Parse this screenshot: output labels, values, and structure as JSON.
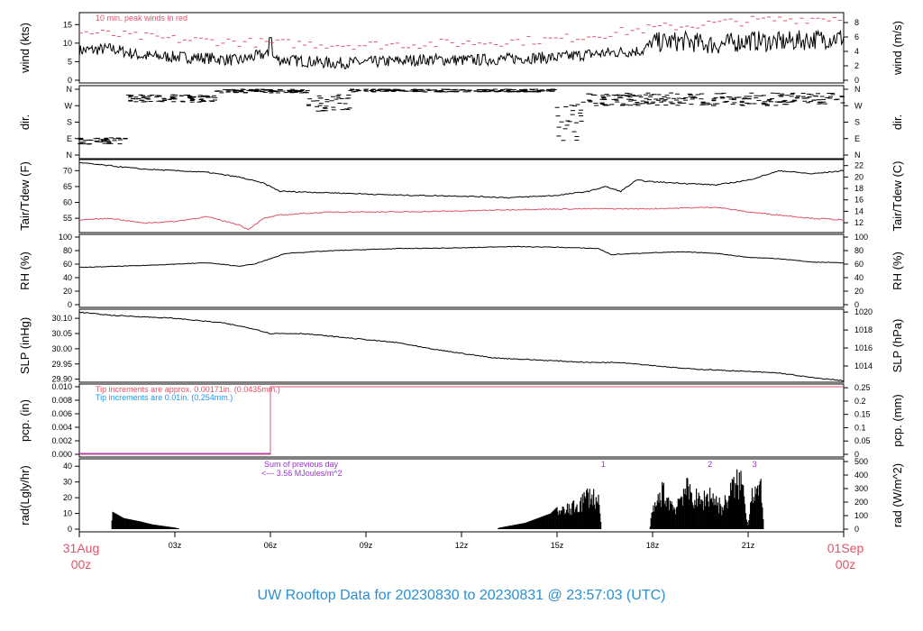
{
  "colors": {
    "accent_red": "#df536b",
    "accent_blue": "#2297e6",
    "accent_purple": "#9a32cd",
    "title_blue": "#2a8fd0"
  },
  "footer": {
    "title": "UW Rooftop Data for 20230830  to  20230831 @ 23:57:03  (UTC)"
  },
  "chart_data": {
    "type": "line",
    "x_axis": {
      "range_hours": [
        0,
        24
      ],
      "tick_hours": [
        3,
        6,
        9,
        12,
        15,
        18,
        21
      ],
      "tick_labels": [
        "03z",
        "06z",
        "09z",
        "12z",
        "15z",
        "18z",
        "21z"
      ],
      "start_label": [
        "31Aug",
        "00z"
      ],
      "end_label": [
        "01Sep",
        "00z"
      ]
    },
    "panels": [
      {
        "key": "wind",
        "left_label": "wind (kts)",
        "right_label": "wind (m/s)",
        "left_ticks": [
          0,
          5,
          10,
          15
        ],
        "right_ticks": [
          0,
          2,
          4,
          6,
          8
        ],
        "ylim": [
          0,
          17.5
        ],
        "annotation": "10 min. peak winds in red",
        "series": [
          {
            "name": "wind speed",
            "knots": [
              [
                0,
                8
              ],
              [
                1,
                8.5
              ],
              [
                2,
                6.5
              ],
              [
                3,
                6.3
              ],
              [
                4,
                6
              ],
              [
                5,
                5.3
              ],
              [
                5.8,
                7
              ],
              [
                6.3,
                5.5
              ],
              [
                7,
                5.2
              ],
              [
                8,
                4.6
              ],
              [
                9,
                4.8
              ],
              [
                10,
                5.2
              ],
              [
                11,
                5.6
              ],
              [
                12,
                5.4
              ],
              [
                13,
                5.6
              ],
              [
                14,
                6
              ],
              [
                15,
                6.1
              ],
              [
                16,
                7
              ],
              [
                17,
                7.6
              ],
              [
                17.7,
                8
              ],
              [
                18,
                10.2
              ],
              [
                19,
                10.5
              ],
              [
                20,
                9.5
              ],
              [
                21,
                10.7
              ],
              [
                22,
                10.3
              ],
              [
                23,
                11
              ],
              [
                24,
                11.5
              ]
            ]
          },
          {
            "name": "peak",
            "knots": [
              [
                0,
                13
              ],
              [
                3,
                11
              ],
              [
                6,
                10
              ],
              [
                9,
                9.5
              ],
              [
                12,
                10
              ],
              [
                15,
                11
              ],
              [
                18,
                14
              ],
              [
                21,
                16
              ],
              [
                24,
                17
              ]
            ]
          }
        ]
      },
      {
        "key": "dir",
        "left_label": "dir.",
        "right_label": "dir.",
        "left_ticks": [
          "N",
          "E",
          "S",
          "W",
          "N"
        ],
        "right_ticks": [
          "N",
          "E",
          "S",
          "W",
          "N"
        ],
        "ylim": [
          0,
          360
        ],
        "segments": [
          {
            "from": 0,
            "to": 1.5,
            "deg": [
              60,
              95
            ]
          },
          {
            "from": 1.5,
            "to": 4.3,
            "deg": [
              290,
              330
            ]
          },
          {
            "from": 4.3,
            "to": 7.2,
            "deg": [
              340,
              360
            ]
          },
          {
            "from": 7.2,
            "to": 8.5,
            "deg": [
              240,
              330
            ]
          },
          {
            "from": 8.5,
            "to": 15,
            "deg": [
              345,
              360
            ]
          },
          {
            "from": 15,
            "to": 15.8,
            "deg": [
              80,
              300
            ]
          },
          {
            "from": 15.8,
            "to": 24,
            "deg": [
              270,
              340
            ]
          }
        ]
      },
      {
        "key": "temp",
        "left_label": "Tair/Tdew (F)",
        "right_label": "Tair/Tdew (C)",
        "left_ticks": [
          55,
          60,
          65,
          70
        ],
        "right_ticks": [
          12,
          14,
          16,
          18,
          20,
          22
        ],
        "ylim": [
          50.5,
          73.5
        ],
        "series": [
          {
            "name": "Tair",
            "knots": [
              [
                0,
                72.5
              ],
              [
                2,
                70.5
              ],
              [
                4,
                69.5
              ],
              [
                5,
                68
              ],
              [
                5.8,
                66
              ],
              [
                6.3,
                63.5
              ],
              [
                8,
                63
              ],
              [
                10,
                62.3
              ],
              [
                12,
                62
              ],
              [
                13.5,
                61.5
              ],
              [
                15,
                62.2
              ],
              [
                16,
                63.5
              ],
              [
                16.5,
                65
              ],
              [
                17,
                63.5
              ],
              [
                17.5,
                67
              ],
              [
                18,
                66.5
              ],
              [
                19,
                66
              ],
              [
                20,
                65.5
              ],
              [
                21,
                67
              ],
              [
                22,
                70
              ],
              [
                23,
                69
              ],
              [
                24,
                70
              ]
            ]
          },
          {
            "name": "Tdew",
            "knots": [
              [
                0,
                54.5
              ],
              [
                1,
                55
              ],
              [
                2,
                53.5
              ],
              [
                3,
                54
              ],
              [
                4,
                55.5
              ],
              [
                5,
                53
              ],
              [
                5.3,
                51.5
              ],
              [
                5.8,
                55
              ],
              [
                6.3,
                56
              ],
              [
                7,
                56.5
              ],
              [
                8,
                57
              ],
              [
                10,
                57
              ],
              [
                12,
                57.3
              ],
              [
                14,
                57.8
              ],
              [
                16,
                58
              ],
              [
                18,
                58
              ],
              [
                20,
                58.5
              ],
              [
                21,
                57
              ],
              [
                22,
                56
              ],
              [
                23,
                55
              ],
              [
                24,
                54.5
              ]
            ]
          }
        ]
      },
      {
        "key": "rh",
        "left_label": "RH (%)",
        "right_label": "RH (%)",
        "left_ticks": [
          0,
          20,
          40,
          60,
          80,
          100
        ],
        "right_ticks": [
          0,
          20,
          40,
          60,
          80,
          100
        ],
        "ylim": [
          0,
          100
        ],
        "series": [
          {
            "name": "RH",
            "knots": [
              [
                0,
                55
              ],
              [
                2,
                58
              ],
              [
                4,
                62
              ],
              [
                5,
                57
              ],
              [
                5.5,
                60
              ],
              [
                6,
                68
              ],
              [
                6.5,
                76
              ],
              [
                8,
                80
              ],
              [
                10,
                83
              ],
              [
                12,
                84
              ],
              [
                13.5,
                86
              ],
              [
                15,
                85
              ],
              [
                16.3,
                83
              ],
              [
                16.7,
                74
              ],
              [
                18,
                77
              ],
              [
                19,
                78
              ],
              [
                20,
                76
              ],
              [
                21,
                70
              ],
              [
                22,
                68
              ],
              [
                23,
                63
              ],
              [
                24,
                62
              ]
            ]
          }
        ]
      },
      {
        "key": "slp",
        "left_label": "SLP (inHg)",
        "right_label": "SLP (hPa)",
        "left_ticks": [
          "29.90",
          "29.95",
          "30.00",
          "30.05",
          "30.10"
        ],
        "right_ticks": [
          1014,
          1016,
          1018,
          1020
        ],
        "ylim": [
          29.89,
          30.13
        ],
        "series": [
          {
            "name": "SLP",
            "knots": [
              [
                0,
                30.12
              ],
              [
                1,
                30.11
              ],
              [
                3,
                30.1
              ],
              [
                4.5,
                30.085
              ],
              [
                5.5,
                30.065
              ],
              [
                6,
                30.05
              ],
              [
                7,
                30.05
              ],
              [
                8,
                30.04
              ],
              [
                10,
                30.02
              ],
              [
                11,
                30
              ],
              [
                12,
                29.985
              ],
              [
                13,
                29.97
              ],
              [
                14,
                29.965
              ],
              [
                16,
                29.955
              ],
              [
                17,
                29.955
              ],
              [
                18,
                29.945
              ],
              [
                19,
                29.935
              ],
              [
                20,
                29.93
              ],
              [
                21,
                29.925
              ],
              [
                22,
                29.92
              ],
              [
                23,
                29.905
              ],
              [
                24,
                29.895
              ]
            ]
          }
        ]
      },
      {
        "key": "pcp",
        "left_label": "pcp. (in)",
        "right_label": "pcp. (mm)",
        "left_ticks": [
          "0.000",
          "0.002",
          "0.004",
          "0.006",
          "0.008",
          "0.010"
        ],
        "right_ticks": [
          "0",
          "0.05",
          "0.1",
          "0.15",
          "0.2",
          "0.25"
        ],
        "ylim": [
          0,
          0.01
        ],
        "notes": [
          "Tip increments are approx. 0.00171in. (0.0435mm.)",
          "Tip increments are 0.01in. (0.254mm.)"
        ],
        "series": [
          {
            "name": "pcp red",
            "knots": [
              [
                0,
                0
              ],
              [
                6,
                0
              ],
              [
                6,
                0.01
              ],
              [
                24,
                0.01
              ]
            ]
          },
          {
            "name": "pcp blue",
            "knots": [
              [
                0,
                0
              ],
              [
                24,
                0
              ]
            ]
          }
        ]
      },
      {
        "key": "rad",
        "left_label": "rad(Lgly/hr)",
        "right_label": "rad (W/m^2)",
        "left_ticks": [
          0,
          10,
          20,
          30,
          40
        ],
        "right_ticks": [
          0,
          100,
          200,
          300,
          400,
          500
        ],
        "ylim": [
          0,
          43
        ],
        "annotations": [
          "Sum of previous day",
          "<--- 3.56 MJoules/m^2"
        ],
        "markers": [
          "1",
          "2",
          "3"
        ],
        "series": [
          {
            "name": "rad",
            "knots": [
              [
                0,
                0
              ],
              [
                1,
                0
              ],
              [
                1.05,
                11
              ],
              [
                1.4,
                7
              ],
              [
                1.9,
                5
              ],
              [
                2.3,
                3
              ],
              [
                3,
                1
              ],
              [
                3.2,
                0
              ],
              [
                13.1,
                0
              ],
              [
                13.2,
                1
              ],
              [
                14,
                4
              ],
              [
                14.8,
                10
              ],
              [
                15,
                14
              ],
              [
                15.5,
                18
              ],
              [
                15.8,
                24
              ],
              [
                16,
                30
              ],
              [
                16.3,
                24
              ],
              [
                16.4,
                0
              ],
              [
                17.9,
                0
              ],
              [
                18,
                14
              ],
              [
                18.3,
                32
              ],
              [
                18.7,
                18
              ],
              [
                19,
                35
              ],
              [
                19.5,
                23
              ],
              [
                19.8,
                30
              ],
              [
                20.2,
                18
              ],
              [
                20.5,
                35
              ],
              [
                20.8,
                42
              ],
              [
                21,
                3
              ],
              [
                21.1,
                33
              ],
              [
                21.4,
                32
              ],
              [
                21.5,
                0
              ],
              [
                24,
                0
              ]
            ]
          }
        ]
      }
    ]
  }
}
